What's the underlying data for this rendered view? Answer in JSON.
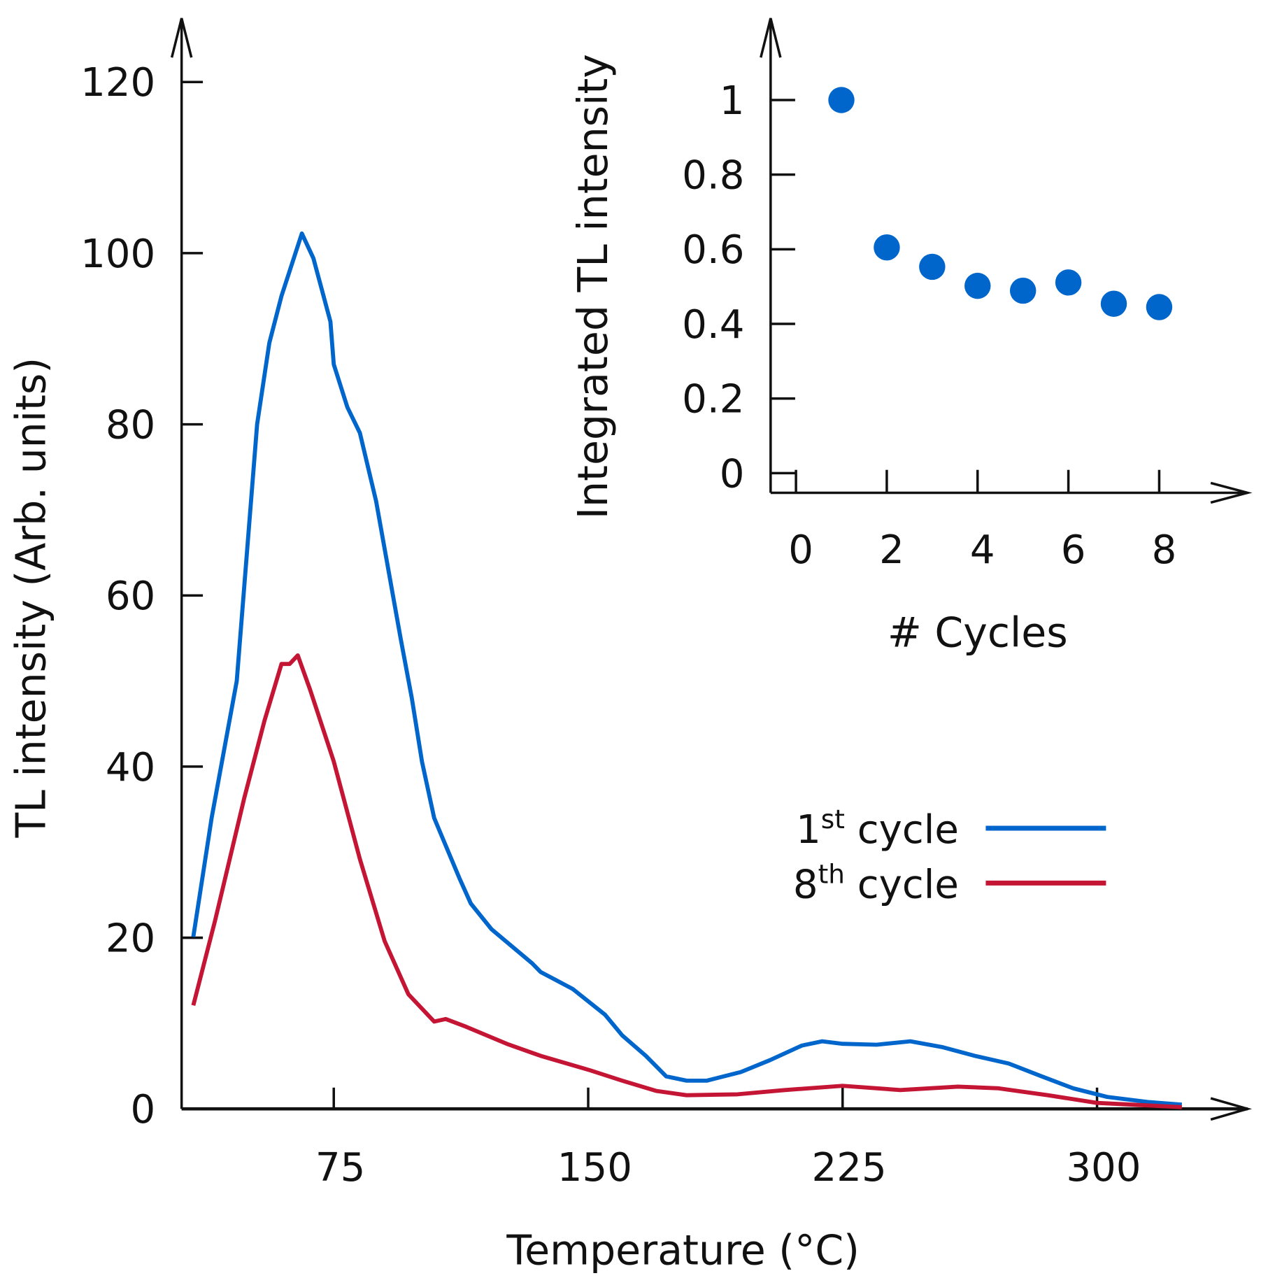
{
  "chart_data": [
    {
      "type": "line",
      "title": "",
      "xlabel": "Temperature (°C)",
      "ylabel": "TL intensity (Arb. units)",
      "xlim": [
        30,
        330
      ],
      "ylim": [
        0,
        120
      ],
      "xticks": [
        75,
        150,
        225,
        300
      ],
      "yticks": [
        0,
        20,
        40,
        60,
        80,
        100,
        120
      ],
      "grid": false,
      "legend_position": "center-right",
      "series": [
        {
          "name": "1st cycle",
          "base": "1",
          "sup": "st",
          "rest": " cycle",
          "color": "#0066cc",
          "x": [
            33.6,
            39,
            46.4,
            52.4,
            56,
            59.6,
            65.6,
            69,
            74,
            75,
            79,
            82.7,
            87.5,
            94.7,
            98,
            101,
            104.6,
            112,
            115.4,
            121.5,
            133.5,
            136,
            145.5,
            155,
            160,
            167,
            173,
            179,
            185,
            195,
            203.6,
            213,
            219,
            225,
            235,
            245,
            254.6,
            264,
            274,
            283.7,
            293,
            303,
            315,
            325
          ],
          "y": [
            20.1,
            34,
            50,
            80,
            89.5,
            95,
            102.3,
            99.4,
            92,
            87,
            82,
            79,
            71,
            55,
            48,
            40.6,
            34,
            27,
            24,
            21,
            17,
            16,
            14,
            11,
            8.6,
            6.2,
            3.8,
            3.3,
            3.3,
            4.3,
            5.7,
            7.4,
            7.9,
            7.6,
            7.5,
            7.9,
            7.2,
            6.2,
            5.3,
            3.8,
            2.4,
            1.4,
            0.8,
            0.5
          ]
        },
        {
          "name": "8th cycle",
          "base": "8",
          "sup": "th",
          "rest": " cycle",
          "color": "#c41535",
          "x": [
            33.6,
            40,
            48.6,
            54.6,
            59.6,
            62,
            64.4,
            68,
            75,
            82.7,
            90,
            97,
            104.6,
            108,
            114,
            126,
            136,
            150.6,
            160,
            170,
            179,
            194,
            208,
            225,
            242,
            259,
            271,
            285.5,
            300,
            325
          ],
          "y": [
            12.1,
            22,
            36.3,
            45.4,
            52,
            52,
            53,
            49,
            40.6,
            29.2,
            19.6,
            13.4,
            10.2,
            10.5,
            9.6,
            7.6,
            6.2,
            4.5,
            3.3,
            2.1,
            1.6,
            1.7,
            2.2,
            2.7,
            2.2,
            2.6,
            2.4,
            1.6,
            0.7,
            0.2
          ]
        }
      ]
    },
    {
      "type": "scatter",
      "title": "",
      "xlabel": "# Cycles",
      "ylabel": "Integrated TL intensity",
      "xlim": [
        -0.5,
        9.5
      ],
      "ylim": [
        0,
        1.1
      ],
      "xticks": [
        0,
        2,
        4,
        6,
        8
      ],
      "yticks": [
        0,
        0.2,
        0.4,
        0.6,
        0.8,
        1
      ],
      "ytick_labels": [
        "0",
        "0.2",
        "0.4",
        "0.6",
        "0.8",
        "1"
      ],
      "grid": false,
      "series": [
        {
          "name": "Integrated TL intensity",
          "color": "#0066cc",
          "x": [
            1,
            2,
            3,
            4,
            5,
            6,
            7,
            8
          ],
          "y": [
            1.0,
            0.605,
            0.553,
            0.502,
            0.489,
            0.511,
            0.454,
            0.445
          ]
        }
      ]
    }
  ]
}
